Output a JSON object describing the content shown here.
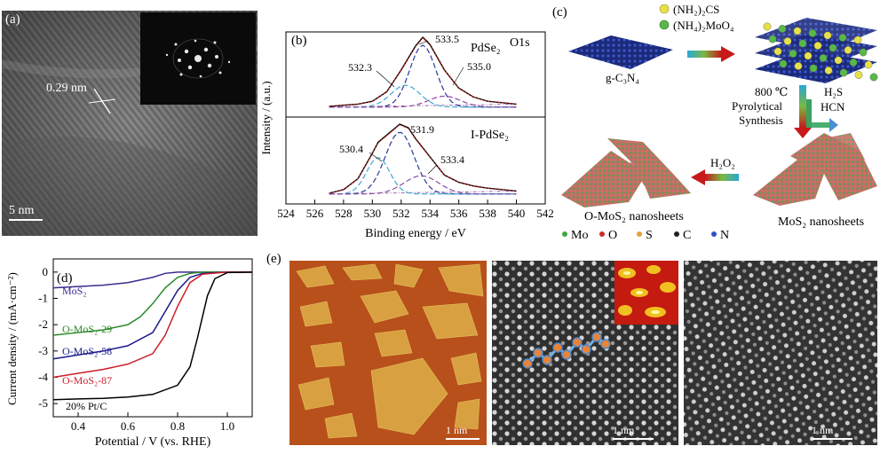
{
  "panel_a": {
    "label": "(a)",
    "spacing_label": "0.29 nm",
    "scale_bar": "5 nm"
  },
  "panel_b": {
    "label": "(b)",
    "orbital": "O1s",
    "ylabel": "Intensity / (a.u.)",
    "xlabel": "Binding energy / eV",
    "top_sample": "PdSe₂",
    "bottom_sample": "I-PdSe₂",
    "top_peaks": [
      "533.5",
      "532.3",
      "535.0"
    ],
    "bottom_peaks": [
      "531.9",
      "530.4",
      "533.4"
    ],
    "x_ticks": [
      "524",
      "526",
      "528",
      "530",
      "532",
      "534",
      "536",
      "538",
      "540",
      "542"
    ]
  },
  "panel_c": {
    "label": "(c)",
    "reagent1": "(NH₂)₂CS",
    "reagent2": "(NH₄)₂MoO₄",
    "start": "g-C₃N₄",
    "temperature": "800 ℃",
    "step1_line1": "Pyrolytical",
    "step1_line2": "Synthesis",
    "gas1": "H₂S",
    "gas2": "HCN",
    "oxidant": "H₂O₂",
    "product1": "MoS₂ nanosheets",
    "product2": "O-MoS₂ nanosheets",
    "legend": [
      {
        "label": "Mo",
        "color": "#3fa845"
      },
      {
        "label": "O",
        "color": "#d42a2a"
      },
      {
        "label": "S",
        "color": "#e8a030"
      },
      {
        "label": "C",
        "color": "#222222"
      },
      {
        "label": "N",
        "color": "#3050c8"
      }
    ]
  },
  "panel_d": {
    "label": "(d)",
    "ylabel": "Current density / (mA·cm⁻²)",
    "xlabel": "Potential / V (vs. RHE)",
    "y_ticks": [
      "0",
      "-1",
      "-2",
      "-3",
      "-4",
      "-5"
    ],
    "x_ticks": [
      "0.4",
      "0.6",
      "0.8",
      "1.0"
    ],
    "series_labels": [
      "MoS₂",
      "O-MoS₂-29",
      "O-MoS₂-58",
      "O-MoS₂-87",
      "20% Pt/C"
    ]
  },
  "panel_e": {
    "label": "(e)",
    "scale_bars": [
      "1 nm",
      "1 nm",
      "1 nm"
    ]
  },
  "chart_data": [
    {
      "type": "line",
      "panel": "b-top",
      "title": "PdSe₂",
      "xlabel": "Binding energy / eV",
      "ylabel": "Intensity / (a.u.)",
      "xlim": [
        524,
        542
      ],
      "x_ticks": [
        524,
        526,
        528,
        530,
        532,
        534,
        536,
        538,
        540,
        542
      ],
      "series": [
        {
          "values_x": [
            527,
            529,
            530,
            531,
            532,
            533,
            533.5,
            534,
            535,
            536,
            537,
            538,
            539,
            540
          ],
          "values_y": [
            0.05,
            0.08,
            0.12,
            0.25,
            0.55,
            0.88,
            1.0,
            0.9,
            0.55,
            0.3,
            0.18,
            0.12,
            0.1,
            0.08
          ]
        }
      ],
      "peaks": [
        532.3,
        533.5,
        535.0
      ]
    },
    {
      "type": "line",
      "panel": "b-bottom",
      "title": "I-PdSe₂",
      "xlabel": "Binding energy / eV",
      "ylabel": "Intensity / (a.u.)",
      "xlim": [
        524,
        542
      ],
      "x_ticks": [
        524,
        526,
        528,
        530,
        532,
        534,
        536,
        538,
        540,
        542
      ],
      "series": [
        {
          "values_x": [
            527,
            528,
            529,
            530,
            530.4,
            531,
            531.9,
            532.5,
            533,
            534,
            535,
            536,
            537,
            538,
            539,
            540
          ],
          "values_y": [
            0.05,
            0.1,
            0.25,
            0.6,
            0.75,
            0.85,
            1.0,
            0.95,
            0.8,
            0.55,
            0.3,
            0.2,
            0.15,
            0.12,
            0.1,
            0.08
          ]
        }
      ],
      "peaks": [
        530.4,
        531.9,
        533.4
      ]
    },
    {
      "type": "line",
      "panel": "d",
      "xlabel": "Potential / V (vs. RHE)",
      "ylabel": "Current density / (mA·cm⁻²)",
      "xlim": [
        0.3,
        1.1
      ],
      "ylim": [
        -5.5,
        0.5
      ],
      "series": [
        {
          "name": "MoS₂",
          "color": "#3a2c8e",
          "x": [
            0.3,
            0.4,
            0.5,
            0.6,
            0.7,
            0.75,
            0.8,
            0.9,
            1.0,
            1.1
          ],
          "y": [
            -0.6,
            -0.55,
            -0.5,
            -0.4,
            -0.2,
            -0.05,
            0.0,
            0.0,
            0.0,
            0.0
          ]
        },
        {
          "name": "O-MoS₂-29",
          "color": "#2a8a2a",
          "x": [
            0.3,
            0.4,
            0.5,
            0.6,
            0.65,
            0.7,
            0.75,
            0.8,
            0.85,
            0.9,
            1.0,
            1.1
          ],
          "y": [
            -2.4,
            -2.3,
            -2.2,
            -2.0,
            -1.7,
            -1.2,
            -0.6,
            -0.2,
            -0.05,
            0.0,
            0.0,
            0.0
          ]
        },
        {
          "name": "O-MoS₂-58",
          "color": "#1a1a8a",
          "x": [
            0.3,
            0.4,
            0.5,
            0.6,
            0.7,
            0.75,
            0.8,
            0.85,
            0.9,
            1.0,
            1.1
          ],
          "y": [
            -3.3,
            -3.15,
            -3.0,
            -2.8,
            -2.3,
            -1.5,
            -0.7,
            -0.2,
            -0.05,
            0.0,
            0.0
          ]
        },
        {
          "name": "O-MoS₂-87",
          "color": "#cc1f2a",
          "x": [
            0.3,
            0.4,
            0.5,
            0.6,
            0.7,
            0.75,
            0.8,
            0.85,
            0.9,
            1.0,
            1.1
          ],
          "y": [
            -4.0,
            -3.85,
            -3.7,
            -3.5,
            -3.1,
            -2.4,
            -1.3,
            -0.4,
            -0.08,
            0.0,
            0.0
          ]
        },
        {
          "name": "20% Pt/C",
          "color": "#000000",
          "x": [
            0.3,
            0.4,
            0.5,
            0.6,
            0.7,
            0.8,
            0.85,
            0.88,
            0.92,
            0.95,
            1.0,
            1.1
          ],
          "y": [
            -4.85,
            -4.82,
            -4.8,
            -4.75,
            -4.65,
            -4.3,
            -3.6,
            -2.5,
            -0.9,
            -0.25,
            -0.02,
            0.0
          ]
        }
      ]
    }
  ]
}
